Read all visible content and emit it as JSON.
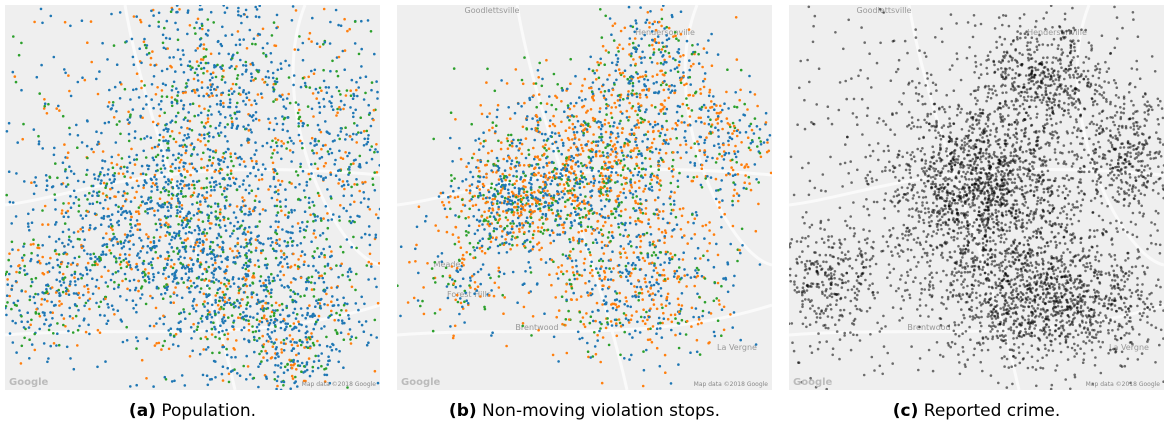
{
  "panels": [
    {
      "label": "(a)",
      "caption": "Population.",
      "map_labels": [],
      "attribution": "Map data ©2018 Google",
      "logo": "Google"
    },
    {
      "label": "(b)",
      "caption": "Non-moving violation stops.",
      "map_labels": [
        "Goodlettsville",
        "Hendersonville",
        "Meade",
        "Forest Hills",
        "Brentwood",
        "La Vergne"
      ],
      "attribution": "Map data ©2018 Google",
      "logo": "Google"
    },
    {
      "label": "(c)",
      "caption": "Reported crime.",
      "map_labels": [
        "Goodlettsville",
        "Hendersonville",
        "Brentwood",
        "La Vergne"
      ],
      "attribution": "Map data ©2018 Google",
      "logo": "Google"
    }
  ]
}
